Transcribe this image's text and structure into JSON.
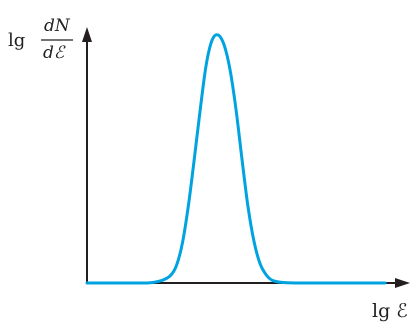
{
  "chart_data": {
    "type": "line",
    "xlabel": "lg ℰ",
    "ylabel": {
      "prefix": "lg",
      "numerator": "dN",
      "denominator": "dℰ"
    },
    "xlim": [
      0,
      10
    ],
    "ylim": [
      0,
      1
    ],
    "grid": false,
    "legend": "none",
    "ticks": "none",
    "series": [
      {
        "x": [
          0,
          1,
          2,
          2.5,
          2.8,
          3.0,
          3.2,
          3.4,
          3.6,
          3.8,
          4.0,
          4.2,
          4.4,
          4.6,
          4.8,
          5.0,
          5.2,
          5.4,
          5.6,
          5.8,
          6.0,
          6.2,
          6.5,
          7,
          8,
          9,
          10
        ],
        "y": [
          0,
          0,
          0,
          0.01,
          0.03,
          0.07,
          0.16,
          0.31,
          0.5,
          0.7,
          0.88,
          0.98,
          1.0,
          0.96,
          0.86,
          0.7,
          0.5,
          0.31,
          0.17,
          0.08,
          0.035,
          0.012,
          0.003,
          0,
          0,
          0,
          0
        ],
        "color": "#00a3e0"
      }
    ],
    "colors": {
      "axis": "#231f20",
      "curve": "#00a3e0"
    }
  }
}
